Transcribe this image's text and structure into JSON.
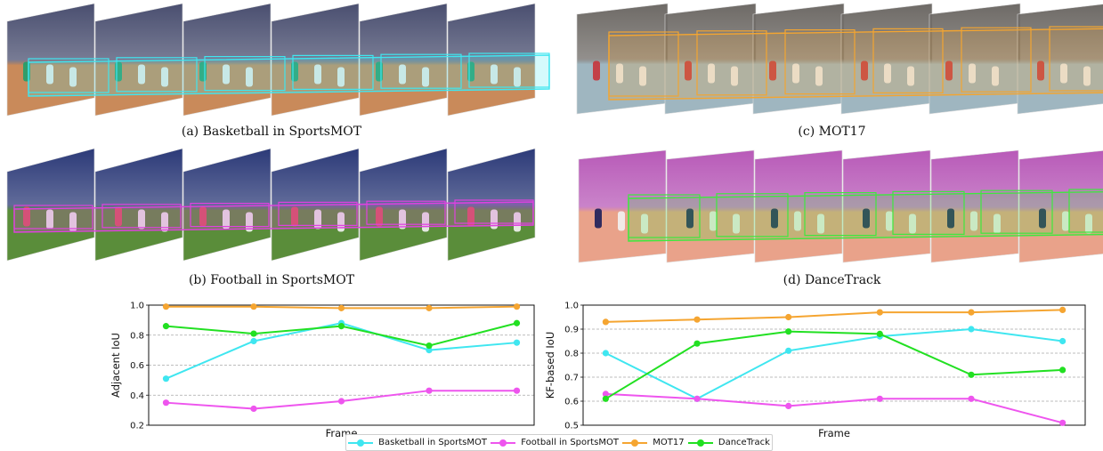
{
  "panels": [
    {
      "id": "a",
      "caption": "(a) Basketball in SportsMOT",
      "box_color": "#3fe6f0",
      "floor": "#c98a5a",
      "crowd": "#4a4f70",
      "accent": "#1f9e6b"
    },
    {
      "id": "b",
      "caption": "(b) Football in SportsMOT",
      "box_color": "#e040e0",
      "floor": "#5a8d3a",
      "crowd": "#2c3a78",
      "accent": "#e05060"
    },
    {
      "id": "c",
      "caption": "(c) MOT17",
      "box_color": "#f3a531",
      "floor": "#9fb6c0",
      "crowd": "#6e6a66",
      "accent": "#c7343b"
    },
    {
      "id": "d",
      "caption": "(d) DanceTrack",
      "box_color": "#3ee83e",
      "floor": "#e9a28a",
      "crowd": "#b85ab8",
      "accent": "#1c1f5a"
    }
  ],
  "legend": {
    "series": [
      {
        "name": "Basketball in SportsMOT",
        "color": "#3fe6f0"
      },
      {
        "name": "Football in SportsMOT",
        "color": "#ee55ee"
      },
      {
        "name": "MOT17",
        "color": "#f5a531"
      },
      {
        "name": "DanceTrack",
        "color": "#22e022"
      }
    ]
  },
  "chart_data": [
    {
      "type": "line",
      "xlabel": "Frame",
      "ylabel": "Adjacent IoU",
      "ylim": [
        0.2,
        1.0
      ],
      "yticks": [
        "0.2",
        "0.4",
        "0.6",
        "0.8",
        "1.0"
      ],
      "grid": "horizontal dashed",
      "x": [
        1,
        2,
        3,
        4,
        5
      ],
      "series": [
        {
          "name": "Basketball in SportsMOT",
          "color": "#3fe6f0",
          "values": [
            0.51,
            0.76,
            0.88,
            0.7,
            0.75
          ]
        },
        {
          "name": "Football in SportsMOT",
          "color": "#ee55ee",
          "values": [
            0.35,
            0.31,
            0.36,
            0.43,
            0.43
          ]
        },
        {
          "name": "MOT17",
          "color": "#f5a531",
          "values": [
            0.99,
            0.99,
            0.98,
            0.98,
            0.99
          ]
        },
        {
          "name": "DanceTrack",
          "color": "#22e022",
          "values": [
            0.86,
            0.81,
            0.86,
            0.73,
            0.88
          ]
        }
      ]
    },
    {
      "type": "line",
      "xlabel": "Frame",
      "ylabel": "KF-based IoU",
      "ylim": [
        0.5,
        1.0
      ],
      "yticks": [
        "0.5",
        "0.6",
        "0.7",
        "0.8",
        "0.9",
        "1.0"
      ],
      "grid": "horizontal dashed",
      "x": [
        1,
        2,
        3,
        4,
        5,
        6
      ],
      "series": [
        {
          "name": "Basketball in SportsMOT",
          "color": "#3fe6f0",
          "values": [
            0.8,
            0.61,
            0.81,
            0.87,
            0.9,
            0.85
          ]
        },
        {
          "name": "Football in SportsMOT",
          "color": "#ee55ee",
          "values": [
            0.63,
            0.61,
            0.58,
            0.61,
            0.61,
            0.51
          ]
        },
        {
          "name": "MOT17",
          "color": "#f5a531",
          "values": [
            0.93,
            0.94,
            0.95,
            0.97,
            0.97,
            0.98
          ]
        },
        {
          "name": "DanceTrack",
          "color": "#22e022",
          "values": [
            0.61,
            0.84,
            0.89,
            0.88,
            0.71,
            0.73
          ]
        }
      ]
    }
  ]
}
